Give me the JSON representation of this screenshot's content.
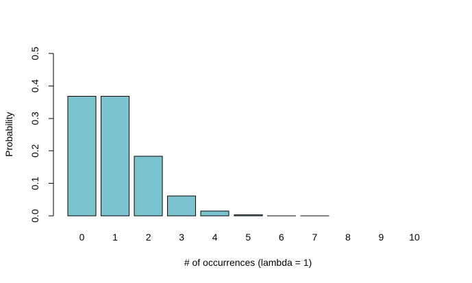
{
  "chart_data": {
    "type": "bar",
    "title": "",
    "xlabel": "# of occurrences (lambda = 1)",
    "ylabel": "Probability",
    "categories": [
      "0",
      "1",
      "2",
      "3",
      "4",
      "5",
      "6",
      "7",
      "8",
      "9",
      "10"
    ],
    "values": [
      0.3679,
      0.3679,
      0.1839,
      0.0613,
      0.0153,
      0.0031,
      0.0005,
      0.0001,
      0.0,
      0.0,
      0.0
    ],
    "ylim": [
      0,
      0.5
    ],
    "yticks": [
      0,
      0.1,
      0.2,
      0.3,
      0.4,
      0.5
    ],
    "ytick_labels": [
      "0.0",
      "0.1",
      "0.2",
      "0.3",
      "0.4",
      "0.5"
    ],
    "grid": false,
    "legend": "none",
    "colors": {
      "bar_fill": "#7bc3ce",
      "bar_border": "#000000",
      "axis": "#000000",
      "background": "#ffffff"
    }
  }
}
